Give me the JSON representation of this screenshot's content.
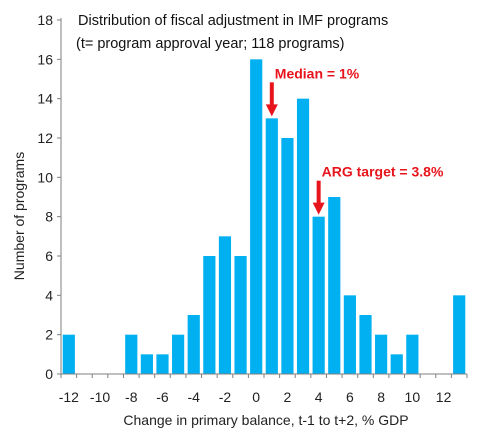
{
  "chart_data": {
    "type": "bar",
    "title": "Distribution  of fiscal adjustment  in IMF programs",
    "subtitle": "(t= program approval year; 118 programs)",
    "xlabel": "Change in primary balance, t-1 to t+2, % GDP",
    "ylabel": "Number of programs",
    "x": [
      -12,
      -11,
      -10,
      -9,
      -8,
      -7,
      -6,
      -5,
      -4,
      -3,
      -2,
      -1,
      0,
      1,
      2,
      3,
      4,
      5,
      6,
      7,
      8,
      9,
      10,
      11,
      12,
      13
    ],
    "values": [
      2,
      0,
      0,
      0,
      2,
      1,
      1,
      2,
      3,
      6,
      7,
      6,
      16,
      13,
      12,
      14,
      8,
      9,
      4,
      3,
      2,
      1,
      2,
      0,
      0,
      4
    ],
    "xticks": [
      -12,
      -10,
      -8,
      -6,
      -4,
      -2,
      0,
      2,
      4,
      6,
      8,
      10,
      12
    ],
    "xtick_labels": [
      "-12",
      "-10",
      "-8",
      "-6",
      "-4",
      "-2",
      "0",
      "2",
      "4",
      "6",
      "8",
      "10",
      "12"
    ],
    "yticks": [
      0,
      2,
      4,
      6,
      8,
      10,
      12,
      14,
      16,
      18
    ],
    "ylim": [
      0,
      18
    ],
    "xlim": [
      -12.5,
      13.5
    ],
    "grid": false,
    "bar_color": "#00b0f0",
    "annotations": [
      {
        "text": "Median = 1%",
        "x": 1,
        "y": 13,
        "color": "#e8141c"
      },
      {
        "text": "ARG target = 3.8%",
        "x": 4,
        "y": 8,
        "color": "#e8141c"
      }
    ]
  }
}
